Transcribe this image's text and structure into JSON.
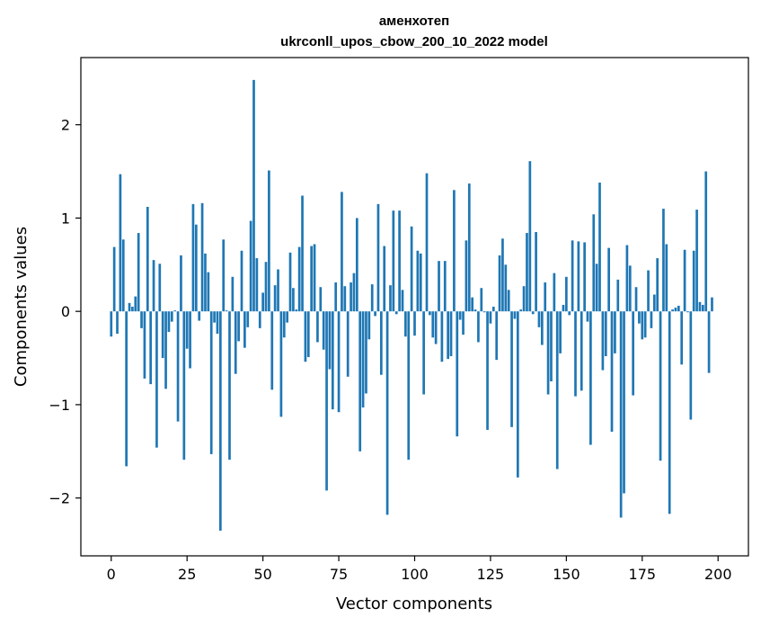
{
  "chart_data": {
    "type": "bar",
    "title_line1": "аменхотеп",
    "title_line2": "ukrconll_upos_cbow_200_10_2022 model",
    "xlabel": "Vector components",
    "ylabel": "Components values",
    "xlim": [
      -10,
      210
    ],
    "ylim": [
      -2.62,
      2.72
    ],
    "xticks": [
      0,
      25,
      50,
      75,
      100,
      125,
      150,
      175,
      200
    ],
    "yticks": [
      -2,
      -1,
      0,
      1,
      2
    ],
    "ytick_labels": [
      "−2",
      "−1",
      "0",
      "1",
      "2"
    ],
    "bar_color": "#1f77b4",
    "grid": false,
    "values": [
      -0.27,
      0.69,
      -0.24,
      1.47,
      0.77,
      -1.66,
      0.09,
      0.05,
      0.16,
      0.84,
      -0.18,
      -0.72,
      1.12,
      -0.78,
      0.55,
      -1.46,
      0.51,
      -0.5,
      -0.83,
      -0.22,
      -0.11,
      0.01,
      -1.18,
      0.6,
      -1.59,
      -0.4,
      -0.61,
      1.15,
      0.93,
      -0.1,
      1.16,
      0.62,
      0.42,
      -1.53,
      -0.12,
      -0.24,
      -2.35,
      0.77,
      0.01,
      -1.59,
      0.37,
      -0.67,
      -0.32,
      0.65,
      -0.39,
      -0.17,
      0.97,
      2.48,
      0.57,
      -0.18,
      0.2,
      0.53,
      1.51,
      -0.84,
      0.28,
      0.45,
      -1.13,
      -0.28,
      -0.12,
      0.63,
      0.25,
      0.02,
      0.69,
      1.24,
      -0.54,
      -0.49,
      0.7,
      0.72,
      -0.33,
      0.26,
      -0.41,
      -1.92,
      -0.62,
      -1.05,
      0.31,
      -1.08,
      1.28,
      0.27,
      -0.7,
      0.31,
      0.41,
      1.0,
      -1.5,
      -1.03,
      -0.88,
      -0.3,
      0.29,
      -0.05,
      1.15,
      -0.68,
      0.7,
      -2.18,
      0.28,
      1.08,
      -0.03,
      1.08,
      0.23,
      -0.27,
      -1.59,
      0.91,
      -0.26,
      0.65,
      0.62,
      -0.89,
      1.48,
      -0.04,
      -0.28,
      -0.35,
      0.54,
      -0.54,
      0.54,
      -0.51,
      -0.48,
      1.3,
      -1.34,
      -0.09,
      -0.25,
      0.76,
      1.37,
      0.15,
      0.02,
      -0.33,
      0.25,
      -0.01,
      -1.27,
      -0.13,
      0.05,
      -0.52,
      0.6,
      0.78,
      0.5,
      0.23,
      -1.24,
      -0.08,
      -1.78,
      0.02,
      0.27,
      0.84,
      1.61,
      -0.03,
      0.85,
      -0.17,
      -0.36,
      0.31,
      -0.89,
      -0.75,
      0.41,
      -1.69,
      -0.45,
      0.07,
      0.37,
      -0.04,
      0.76,
      -0.91,
      0.75,
      -0.85,
      0.74,
      -0.11,
      -1.43,
      1.04,
      0.51,
      1.38,
      -0.63,
      -0.48,
      0.68,
      -1.29,
      -0.45,
      0.34,
      -2.21,
      -1.95,
      0.71,
      0.49,
      -0.9,
      0.26,
      -0.13,
      -0.3,
      -0.28,
      0.44,
      -0.18,
      0.18,
      0.57,
      -1.6,
      1.1,
      0.72,
      -2.17,
      0.02,
      0.04,
      0.06,
      -0.57,
      0.66,
      -0.01,
      -1.16,
      0.65,
      1.09,
      0.1,
      0.07,
      1.5,
      -0.66,
      0.15
    ]
  }
}
